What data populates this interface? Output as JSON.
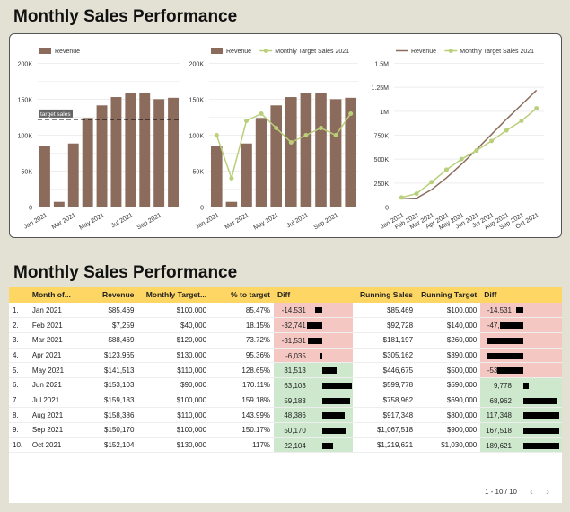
{
  "titles": {
    "top": "Monthly Sales Performance",
    "bottom": "Monthly Sales Performance"
  },
  "colors": {
    "revenue": "#8b6b5b",
    "target": "#b9cf7a",
    "neg": "#f4c7c3",
    "pos": "#cde8cc",
    "header": "#fdd663"
  },
  "chart_data": [
    {
      "type": "bar",
      "legend": [
        "Revenue"
      ],
      "categories": [
        "Jan 2021",
        "Feb 2021",
        "Mar 2021",
        "Apr 2021",
        "May 2021",
        "Jun 2021",
        "Jul 2021",
        "Aug 2021",
        "Sep 2021",
        "Oct 2021"
      ],
      "xtick_labels": [
        "Jan 2021",
        "Mar 2021",
        "May 2021",
        "Jul 2021",
        "Sep 2021"
      ],
      "values": [
        85469,
        7259,
        88469,
        123965,
        141513,
        153103,
        159183,
        158386,
        150170,
        152104
      ],
      "yticks": [
        "0",
        "50K",
        "100K",
        "150K",
        "200K"
      ],
      "ylim": [
        0,
        200000
      ],
      "reference_line": {
        "label": "target sales",
        "value": 122000
      }
    },
    {
      "type": "bar+line",
      "legend": [
        "Revenue",
        "Monthly Target Sales 2021"
      ],
      "categories": [
        "Jan 2021",
        "Feb 2021",
        "Mar 2021",
        "Apr 2021",
        "May 2021",
        "Jun 2021",
        "Jul 2021",
        "Aug 2021",
        "Sep 2021",
        "Oct 2021"
      ],
      "xtick_labels": [
        "Jan 2021",
        "Mar 2021",
        "May 2021",
        "Jul 2021",
        "Sep 2021"
      ],
      "series": [
        {
          "name": "Revenue",
          "values": [
            85469,
            7259,
            88469,
            123965,
            141513,
            153103,
            159183,
            158386,
            150170,
            152104
          ]
        },
        {
          "name": "Monthly Target Sales 2021",
          "values": [
            100000,
            40000,
            120000,
            130000,
            110000,
            90000,
            100000,
            110000,
            100000,
            130000
          ]
        }
      ],
      "yticks": [
        "0",
        "50K",
        "100K",
        "150K",
        "200K"
      ],
      "ylim": [
        0,
        200000
      ]
    },
    {
      "type": "line",
      "legend": [
        "Revenue",
        "Monthly Target Sales 2021"
      ],
      "categories": [
        "Jan 2021",
        "Feb 2021",
        "Mar 2021",
        "Apr 2021",
        "May 2021",
        "Jun 2021",
        "Jul 2021",
        "Aug 2021",
        "Sep 2021",
        "Oct 2021"
      ],
      "xtick_labels": [
        "Jan 2021",
        "Feb 2021",
        "Mar 2021",
        "Apr 2021",
        "May 2021",
        "Jun 2021",
        "Jul 2021",
        "Aug 2021",
        "Sep 2021",
        "Oct 2021"
      ],
      "series": [
        {
          "name": "Revenue",
          "values": [
            85469,
            92728,
            181197,
            305162,
            446675,
            599778,
            758962,
            917348,
            1067518,
            1219621
          ]
        },
        {
          "name": "Monthly Target Sales 2021",
          "values": [
            100000,
            140000,
            260000,
            390000,
            500000,
            590000,
            690000,
            800000,
            900000,
            1030000
          ]
        }
      ],
      "yticks": [
        "0",
        "250K",
        "500K",
        "750K",
        "1M",
        "1.25M",
        "1.5M"
      ],
      "ylim": [
        0,
        1500000
      ]
    }
  ],
  "table": {
    "headers": [
      "",
      "Month of...",
      "Revenue",
      "Monthly Target...",
      "% to target",
      "Diff",
      "Running Sales",
      "Running Target",
      "Diff"
    ],
    "rows": [
      [
        "1.",
        "Jan 2021",
        "$85,469",
        "$100,000",
        "85.47%",
        "-14,531",
        "$85,469",
        "$100,000",
        "-14,531"
      ],
      [
        "2.",
        "Feb 2021",
        "$7,259",
        "$40,000",
        "18.15%",
        "-32,741",
        "$92,728",
        "$140,000",
        "-47,272"
      ],
      [
        "3.",
        "Mar 2021",
        "$88,469",
        "$120,000",
        "73.72%",
        "-31,531",
        "$181,197",
        "$260,000",
        "-78,803"
      ],
      [
        "4.",
        "Apr 2021",
        "$123,965",
        "$130,000",
        "95.36%",
        "-6,035",
        "$305,162",
        "$390,000",
        "-84,838"
      ],
      [
        "5.",
        "May 2021",
        "$141,513",
        "$110,000",
        "128.65%",
        "31,513",
        "$446,675",
        "$500,000",
        "-53,325"
      ],
      [
        "6.",
        "Jun 2021",
        "$153,103",
        "$90,000",
        "170.11%",
        "63,103",
        "$599,778",
        "$590,000",
        "9,778"
      ],
      [
        "7.",
        "Jul 2021",
        "$159,183",
        "$100,000",
        "159.18%",
        "59,183",
        "$758,962",
        "$690,000",
        "68,962"
      ],
      [
        "8.",
        "Aug 2021",
        "$158,386",
        "$110,000",
        "143.99%",
        "48,386",
        "$917,348",
        "$800,000",
        "117,348"
      ],
      [
        "9.",
        "Sep 2021",
        "$150,170",
        "$100,000",
        "150.17%",
        "50,170",
        "$1,067,518",
        "$900,000",
        "167,518"
      ],
      [
        "10.",
        "Oct 2021",
        "$152,104",
        "$130,000",
        "117%",
        "22,104",
        "$1,219,621",
        "$1,030,000",
        "189,621"
      ]
    ],
    "diff_values": [
      [
        -14531,
        -32741,
        -31531,
        -6035,
        31513,
        63103,
        59183,
        48386,
        50170,
        22104
      ],
      [
        -14531,
        -47272,
        -78803,
        -84838,
        -53325,
        9778,
        68962,
        117348,
        167518,
        189621
      ]
    ]
  },
  "pager": {
    "range": "1 - 10 / 10",
    "prev": "‹",
    "next": "›"
  }
}
